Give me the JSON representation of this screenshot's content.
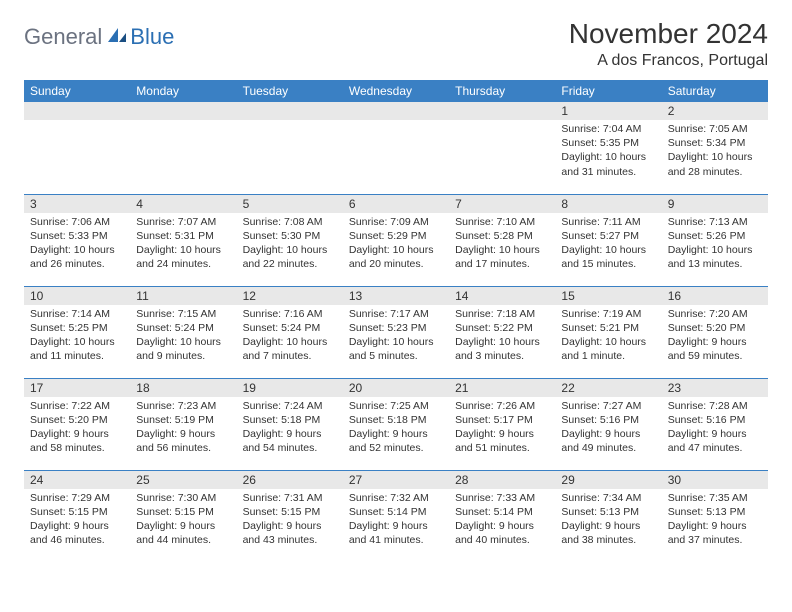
{
  "logo": {
    "part1": "General",
    "part2": "Blue"
  },
  "title": "November 2024",
  "location": "A dos Francos, Portugal",
  "colors": {
    "header_bg": "#3a80c4",
    "header_text": "#ffffff",
    "daynum_bg": "#e8e8e8",
    "border": "#3a80c4",
    "logo_gray": "#6b7280",
    "logo_blue": "#2b6fb3",
    "body_text": "#333333",
    "page_bg": "#ffffff"
  },
  "typography": {
    "title_fontsize": 28,
    "location_fontsize": 16,
    "header_fontsize": 12,
    "daynum_fontsize": 12,
    "body_fontsize": 10.5
  },
  "weekdays": [
    "Sunday",
    "Monday",
    "Tuesday",
    "Wednesday",
    "Thursday",
    "Friday",
    "Saturday"
  ],
  "weeks": [
    [
      {
        "day": "",
        "sunrise": "",
        "sunset": "",
        "daylight": ""
      },
      {
        "day": "",
        "sunrise": "",
        "sunset": "",
        "daylight": ""
      },
      {
        "day": "",
        "sunrise": "",
        "sunset": "",
        "daylight": ""
      },
      {
        "day": "",
        "sunrise": "",
        "sunset": "",
        "daylight": ""
      },
      {
        "day": "",
        "sunrise": "",
        "sunset": "",
        "daylight": ""
      },
      {
        "day": "1",
        "sunrise": "Sunrise: 7:04 AM",
        "sunset": "Sunset: 5:35 PM",
        "daylight": "Daylight: 10 hours and 31 minutes."
      },
      {
        "day": "2",
        "sunrise": "Sunrise: 7:05 AM",
        "sunset": "Sunset: 5:34 PM",
        "daylight": "Daylight: 10 hours and 28 minutes."
      }
    ],
    [
      {
        "day": "3",
        "sunrise": "Sunrise: 7:06 AM",
        "sunset": "Sunset: 5:33 PM",
        "daylight": "Daylight: 10 hours and 26 minutes."
      },
      {
        "day": "4",
        "sunrise": "Sunrise: 7:07 AM",
        "sunset": "Sunset: 5:31 PM",
        "daylight": "Daylight: 10 hours and 24 minutes."
      },
      {
        "day": "5",
        "sunrise": "Sunrise: 7:08 AM",
        "sunset": "Sunset: 5:30 PM",
        "daylight": "Daylight: 10 hours and 22 minutes."
      },
      {
        "day": "6",
        "sunrise": "Sunrise: 7:09 AM",
        "sunset": "Sunset: 5:29 PM",
        "daylight": "Daylight: 10 hours and 20 minutes."
      },
      {
        "day": "7",
        "sunrise": "Sunrise: 7:10 AM",
        "sunset": "Sunset: 5:28 PM",
        "daylight": "Daylight: 10 hours and 17 minutes."
      },
      {
        "day": "8",
        "sunrise": "Sunrise: 7:11 AM",
        "sunset": "Sunset: 5:27 PM",
        "daylight": "Daylight: 10 hours and 15 minutes."
      },
      {
        "day": "9",
        "sunrise": "Sunrise: 7:13 AM",
        "sunset": "Sunset: 5:26 PM",
        "daylight": "Daylight: 10 hours and 13 minutes."
      }
    ],
    [
      {
        "day": "10",
        "sunrise": "Sunrise: 7:14 AM",
        "sunset": "Sunset: 5:25 PM",
        "daylight": "Daylight: 10 hours and 11 minutes."
      },
      {
        "day": "11",
        "sunrise": "Sunrise: 7:15 AM",
        "sunset": "Sunset: 5:24 PM",
        "daylight": "Daylight: 10 hours and 9 minutes."
      },
      {
        "day": "12",
        "sunrise": "Sunrise: 7:16 AM",
        "sunset": "Sunset: 5:24 PM",
        "daylight": "Daylight: 10 hours and 7 minutes."
      },
      {
        "day": "13",
        "sunrise": "Sunrise: 7:17 AM",
        "sunset": "Sunset: 5:23 PM",
        "daylight": "Daylight: 10 hours and 5 minutes."
      },
      {
        "day": "14",
        "sunrise": "Sunrise: 7:18 AM",
        "sunset": "Sunset: 5:22 PM",
        "daylight": "Daylight: 10 hours and 3 minutes."
      },
      {
        "day": "15",
        "sunrise": "Sunrise: 7:19 AM",
        "sunset": "Sunset: 5:21 PM",
        "daylight": "Daylight: 10 hours and 1 minute."
      },
      {
        "day": "16",
        "sunrise": "Sunrise: 7:20 AM",
        "sunset": "Sunset: 5:20 PM",
        "daylight": "Daylight: 9 hours and 59 minutes."
      }
    ],
    [
      {
        "day": "17",
        "sunrise": "Sunrise: 7:22 AM",
        "sunset": "Sunset: 5:20 PM",
        "daylight": "Daylight: 9 hours and 58 minutes."
      },
      {
        "day": "18",
        "sunrise": "Sunrise: 7:23 AM",
        "sunset": "Sunset: 5:19 PM",
        "daylight": "Daylight: 9 hours and 56 minutes."
      },
      {
        "day": "19",
        "sunrise": "Sunrise: 7:24 AM",
        "sunset": "Sunset: 5:18 PM",
        "daylight": "Daylight: 9 hours and 54 minutes."
      },
      {
        "day": "20",
        "sunrise": "Sunrise: 7:25 AM",
        "sunset": "Sunset: 5:18 PM",
        "daylight": "Daylight: 9 hours and 52 minutes."
      },
      {
        "day": "21",
        "sunrise": "Sunrise: 7:26 AM",
        "sunset": "Sunset: 5:17 PM",
        "daylight": "Daylight: 9 hours and 51 minutes."
      },
      {
        "day": "22",
        "sunrise": "Sunrise: 7:27 AM",
        "sunset": "Sunset: 5:16 PM",
        "daylight": "Daylight: 9 hours and 49 minutes."
      },
      {
        "day": "23",
        "sunrise": "Sunrise: 7:28 AM",
        "sunset": "Sunset: 5:16 PM",
        "daylight": "Daylight: 9 hours and 47 minutes."
      }
    ],
    [
      {
        "day": "24",
        "sunrise": "Sunrise: 7:29 AM",
        "sunset": "Sunset: 5:15 PM",
        "daylight": "Daylight: 9 hours and 46 minutes."
      },
      {
        "day": "25",
        "sunrise": "Sunrise: 7:30 AM",
        "sunset": "Sunset: 5:15 PM",
        "daylight": "Daylight: 9 hours and 44 minutes."
      },
      {
        "day": "26",
        "sunrise": "Sunrise: 7:31 AM",
        "sunset": "Sunset: 5:15 PM",
        "daylight": "Daylight: 9 hours and 43 minutes."
      },
      {
        "day": "27",
        "sunrise": "Sunrise: 7:32 AM",
        "sunset": "Sunset: 5:14 PM",
        "daylight": "Daylight: 9 hours and 41 minutes."
      },
      {
        "day": "28",
        "sunrise": "Sunrise: 7:33 AM",
        "sunset": "Sunset: 5:14 PM",
        "daylight": "Daylight: 9 hours and 40 minutes."
      },
      {
        "day": "29",
        "sunrise": "Sunrise: 7:34 AM",
        "sunset": "Sunset: 5:13 PM",
        "daylight": "Daylight: 9 hours and 38 minutes."
      },
      {
        "day": "30",
        "sunrise": "Sunrise: 7:35 AM",
        "sunset": "Sunset: 5:13 PM",
        "daylight": "Daylight: 9 hours and 37 minutes."
      }
    ]
  ]
}
